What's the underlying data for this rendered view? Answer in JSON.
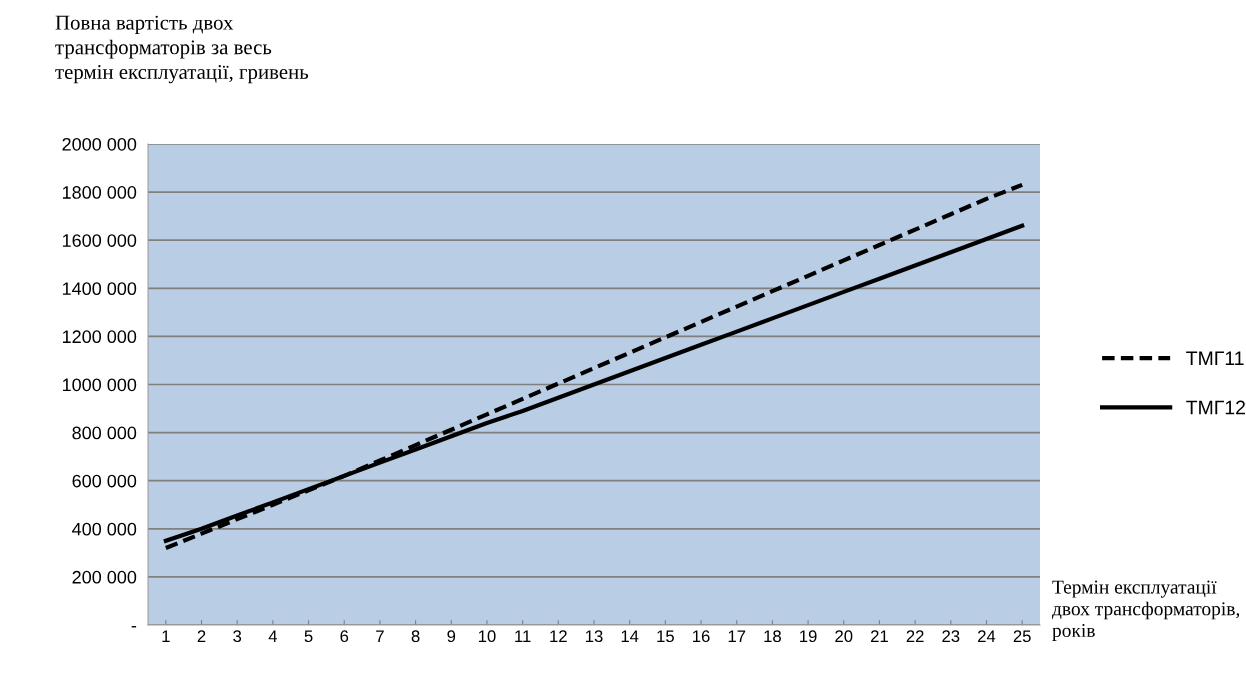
{
  "chart_data": {
    "type": "line",
    "ylabel": "Повна вартість двох\nтрансформаторів за весь\nтермін експлуатації, гривень",
    "xlabel": "Термін експлуатації\nдвох трансформаторів,\nроків",
    "categories": [
      "1",
      "2",
      "3",
      "4",
      "5",
      "6",
      "7",
      "8",
      "9",
      "10",
      "11",
      "12",
      "13",
      "14",
      "15",
      "16",
      "17",
      "18",
      "19",
      "20",
      "21",
      "22",
      "23",
      "24",
      "25"
    ],
    "series": [
      {
        "name": "ТМГ11",
        "color": "#000000",
        "line_style": "dashed",
        "values": [
          320000,
          380000,
          440000,
          500000,
          560000,
          620000,
          684000,
          748000,
          812000,
          876000,
          940000,
          1004000,
          1068000,
          1132000,
          1196000,
          1260000,
          1324000,
          1388000,
          1452000,
          1516000,
          1580000,
          1644000,
          1708000,
          1772000,
          1830000
        ]
      },
      {
        "name": "ТМГ12",
        "color": "#000000",
        "line_style": "solid",
        "values": [
          350000,
          400000,
          455000,
          510000,
          565000,
          620000,
          675000,
          730000,
          785000,
          840000,
          890000,
          945000,
          1000000,
          1055000,
          1110000,
          1165000,
          1220000,
          1275000,
          1330000,
          1385000,
          1440000,
          1495000,
          1550000,
          1605000,
          1660000
        ]
      }
    ],
    "ylim": [
      0,
      2000000
    ],
    "yticks": [
      {
        "value": 0,
        "label": "-"
      },
      {
        "value": 200000,
        "label": "200 000"
      },
      {
        "value": 400000,
        "label": "400 000"
      },
      {
        "value": 600000,
        "label": "600 000"
      },
      {
        "value": 800000,
        "label": "800 000"
      },
      {
        "value": 1000000,
        "label": "1000 000"
      },
      {
        "value": 1200000,
        "label": "1200 000"
      },
      {
        "value": 1400000,
        "label": "1400 000"
      },
      {
        "value": 1600000,
        "label": "1600 000"
      },
      {
        "value": 1800000,
        "label": "1800 000"
      },
      {
        "value": 2000000,
        "label": "2000 000"
      }
    ],
    "grid": "y",
    "legend": "right",
    "marker": "none"
  }
}
